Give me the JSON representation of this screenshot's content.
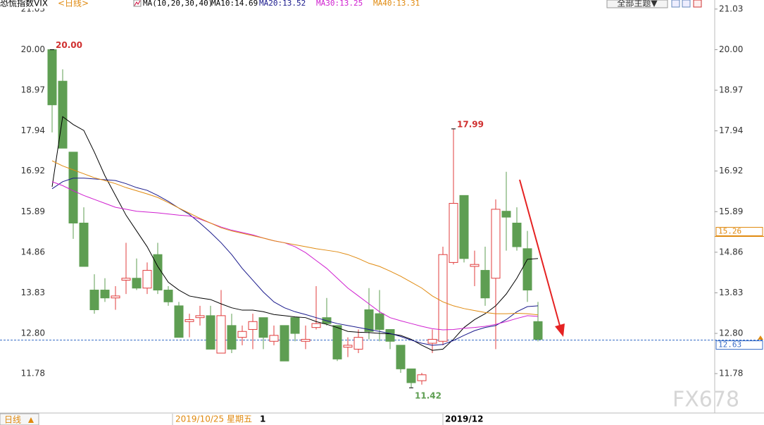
{
  "chart_data": {
    "type": "candlestick",
    "title": "恐慌指数VIX",
    "period": "<日线>",
    "indicator": "MA(10,20,30,40)",
    "toolbar_button": "全部主题▼",
    "period_button": "日线",
    "x_axis_labels": [
      "2019/10/25 星期五",
      "1",
      "2019/12"
    ],
    "watermark": "FX678",
    "up_color": "#e03c3c",
    "down_color": "#5e9e52",
    "ylim": [
      10.78,
      21.26
    ],
    "yticks": [
      21.03,
      {
        "value": 20,
        "label": "20.00"
      },
      18.97,
      17.94,
      16.92,
      15.89,
      14.86,
      13.83,
      {
        "value": 12.8,
        "label": "12.80"
      },
      11.78
    ],
    "open": [
      20.0,
      19.2,
      17.4,
      15.6,
      13.9,
      13.9,
      13.7,
      14.15,
      14.2,
      13.95,
      14.8,
      13.9,
      13.5,
      13.1,
      13.2,
      13.25,
      12.3,
      13.0,
      12.7,
      12.9,
      13.2,
      12.6,
      13.0,
      13.2,
      12.6,
      12.95,
      13.2,
      13.0,
      12.45,
      12.4,
      13.4,
      13.3,
      12.9,
      12.5,
      11.9,
      11.6,
      12.55,
      12.6,
      14.6,
      16.3,
      14.5,
      14.4,
      14.2,
      15.9,
      15.6,
      14.95,
      13.1
    ],
    "high": [
      20.0,
      19.5,
      17.4,
      16.0,
      14.3,
      14.2,
      14.0,
      15.1,
      14.7,
      14.6,
      15.1,
      14.0,
      13.6,
      13.3,
      13.5,
      13.5,
      13.9,
      13.3,
      13.0,
      13.3,
      13.2,
      13.0,
      13.0,
      13.2,
      13.0,
      14.0,
      13.7,
      13.0,
      12.7,
      12.9,
      13.95,
      13.9,
      12.9,
      12.5,
      11.9,
      11.8,
      12.9,
      15.0,
      17.99,
      16.3,
      14.9,
      15.0,
      16.2,
      16.9,
      16.0,
      15.4,
      13.6
    ],
    "low": [
      17.9,
      17.5,
      15.2,
      14.5,
      13.3,
      13.6,
      13.4,
      13.8,
      13.9,
      13.8,
      13.8,
      13.5,
      12.7,
      12.7,
      13.0,
      12.4,
      12.3,
      12.3,
      12.5,
      12.4,
      12.4,
      12.5,
      12.1,
      12.6,
      12.4,
      12.9,
      13.0,
      12.1,
      12.2,
      12.3,
      12.65,
      12.6,
      12.4,
      11.8,
      11.42,
      11.5,
      12.3,
      12.5,
      14.55,
      14.6,
      14.0,
      13.5,
      12.4,
      14.9,
      14.9,
      13.6,
      12.6
    ],
    "close": [
      18.6,
      17.5,
      15.6,
      14.5,
      13.4,
      13.7,
      13.75,
      14.2,
      13.95,
      14.4,
      13.9,
      13.6,
      12.7,
      13.15,
      13.25,
      12.4,
      13.25,
      12.4,
      12.85,
      13.1,
      12.7,
      12.75,
      12.1,
      12.8,
      12.65,
      13.05,
      13.05,
      12.15,
      12.5,
      12.7,
      12.85,
      12.9,
      12.6,
      11.9,
      11.55,
      11.75,
      12.65,
      14.8,
      16.1,
      14.7,
      14.55,
      13.7,
      15.95,
      15.75,
      15.0,
      13.9,
      12.65
    ],
    "annotations": [
      {
        "value": 20,
        "label": "20.00"
      },
      17.99,
      11.42
    ],
    "series": [
      {
        "name": "MA10:14.69",
        "color": "#000000",
        "values": [
          16.52,
          18.3,
          18.1,
          17.95,
          17.4,
          16.8,
          16.3,
          15.8,
          15.4,
          15.0,
          14.5,
          14.1,
          13.9,
          13.75,
          13.7,
          13.66,
          13.55,
          13.45,
          13.39,
          13.39,
          13.35,
          13.28,
          13.25,
          13.22,
          13.2,
          13.1,
          13.03,
          12.95,
          12.85,
          12.83,
          12.82,
          12.8,
          12.79,
          12.75,
          12.65,
          12.5,
          12.37,
          12.4,
          12.65,
          12.95,
          13.15,
          13.3,
          13.5,
          13.8,
          14.2,
          14.68,
          14.7
        ]
      },
      {
        "name": "MA20:13.52",
        "color": "#1a1a8c",
        "values": [
          16.47,
          16.65,
          16.74,
          16.74,
          16.72,
          16.7,
          16.68,
          16.6,
          16.5,
          16.43,
          16.3,
          16.15,
          15.98,
          15.82,
          15.6,
          15.36,
          15.1,
          14.8,
          14.45,
          14.15,
          13.85,
          13.6,
          13.45,
          13.35,
          13.28,
          13.2,
          13.12,
          13.05,
          13.0,
          12.95,
          12.9,
          12.85,
          12.8,
          12.72,
          12.63,
          12.55,
          12.5,
          12.52,
          12.62,
          12.75,
          12.87,
          12.95,
          13.0,
          13.15,
          13.35,
          13.48,
          13.5
        ]
      },
      {
        "name": "MA30:13.25",
        "color": "#d020d0",
        "values": [
          16.65,
          16.55,
          16.42,
          16.3,
          16.2,
          16.1,
          16.0,
          15.95,
          15.9,
          15.88,
          15.86,
          15.83,
          15.8,
          15.78,
          15.7,
          15.6,
          15.5,
          15.42,
          15.36,
          15.3,
          15.22,
          15.15,
          15.1,
          15.0,
          14.85,
          14.65,
          14.45,
          14.2,
          13.95,
          13.75,
          13.55,
          13.35,
          13.2,
          13.12,
          13.05,
          12.98,
          12.92,
          12.89,
          12.9,
          12.93,
          12.95,
          12.98,
          13.03,
          13.1,
          13.18,
          13.25,
          13.23
        ]
      },
      {
        "name": "MA40:13.31",
        "color": "#e08a10",
        "values": [
          17.18,
          17.05,
          16.95,
          16.85,
          16.75,
          16.68,
          16.6,
          16.5,
          16.42,
          16.34,
          16.25,
          16.12,
          15.98,
          15.85,
          15.72,
          15.6,
          15.48,
          15.4,
          15.34,
          15.28,
          15.22,
          15.15,
          15.1,
          15.05,
          15.0,
          14.95,
          14.91,
          14.87,
          14.8,
          14.7,
          14.58,
          14.5,
          14.38,
          14.25,
          14.1,
          13.95,
          13.75,
          13.6,
          13.5,
          13.43,
          13.38,
          13.33,
          13.3,
          13.3,
          13.31,
          13.3,
          13.27
        ]
      }
    ],
    "price_marks": [
      {
        "value": 15.26,
        "color": "#e08a10"
      },
      {
        "value": 12.63,
        "color": "#3a6ec8"
      }
    ]
  }
}
